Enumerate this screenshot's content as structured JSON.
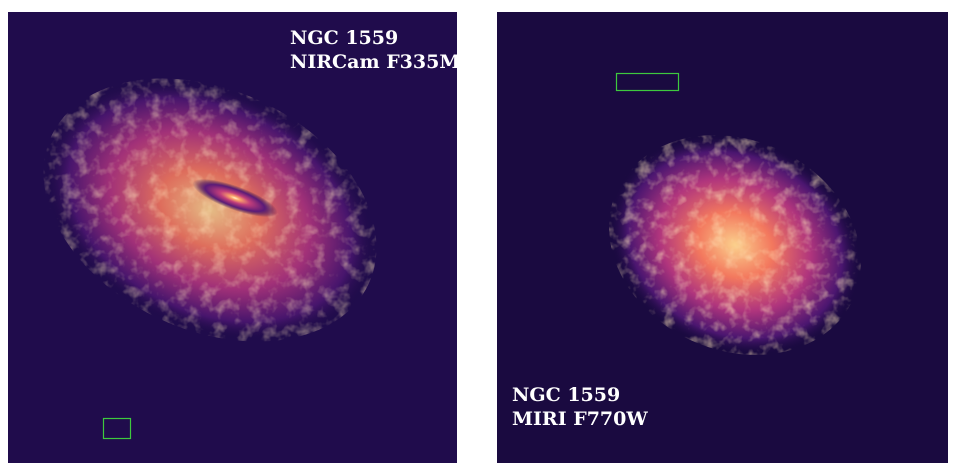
{
  "panels": [
    {
      "object": "NGC 1559",
      "instrument": "NIRCam F335M"
    },
    {
      "object": "NGC 1559",
      "instrument": "MIRI F770W"
    }
  ]
}
